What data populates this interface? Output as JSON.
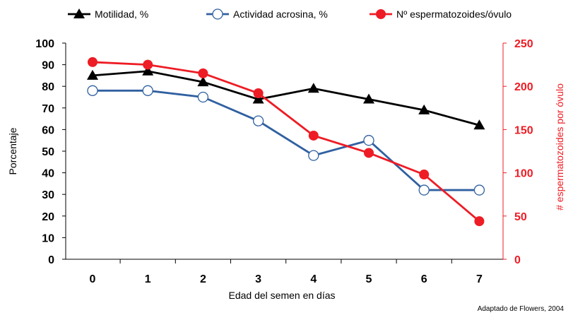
{
  "chart_data": {
    "type": "line",
    "x": [
      0,
      1,
      2,
      3,
      4,
      5,
      6,
      7
    ],
    "xlabel": "Edad del semen en días",
    "y_left": {
      "label": "Porcentaje",
      "ylim": [
        0,
        100
      ],
      "ticks": [
        0,
        10,
        20,
        30,
        40,
        50,
        60,
        70,
        80,
        90,
        100
      ]
    },
    "y_right": {
      "label": "# espermatozoides por óvulo",
      "ylim": [
        0,
        250
      ],
      "ticks": [
        0,
        50,
        100,
        150,
        200,
        250
      ]
    },
    "series": [
      {
        "name": "Motilidad, %",
        "axis": "left",
        "color": "#000000",
        "marker": "triangle",
        "values": [
          85,
          87,
          82,
          74,
          79,
          74,
          69,
          62
        ]
      },
      {
        "name": "Actividad acrosina, %",
        "axis": "left",
        "color": "#3060A0",
        "marker": "open-circle",
        "values": [
          78,
          78,
          75,
          64,
          48,
          55,
          32,
          32
        ]
      },
      {
        "name": "Nº espermatozoides/óvulo",
        "axis": "right",
        "color": "#EE1C24",
        "marker": "filled-circle",
        "values": [
          228,
          225,
          215,
          192,
          143,
          123,
          98,
          44
        ]
      }
    ],
    "legend_position": "top",
    "grid": false,
    "annotation": "Adaptado de Flowers, 2004"
  }
}
